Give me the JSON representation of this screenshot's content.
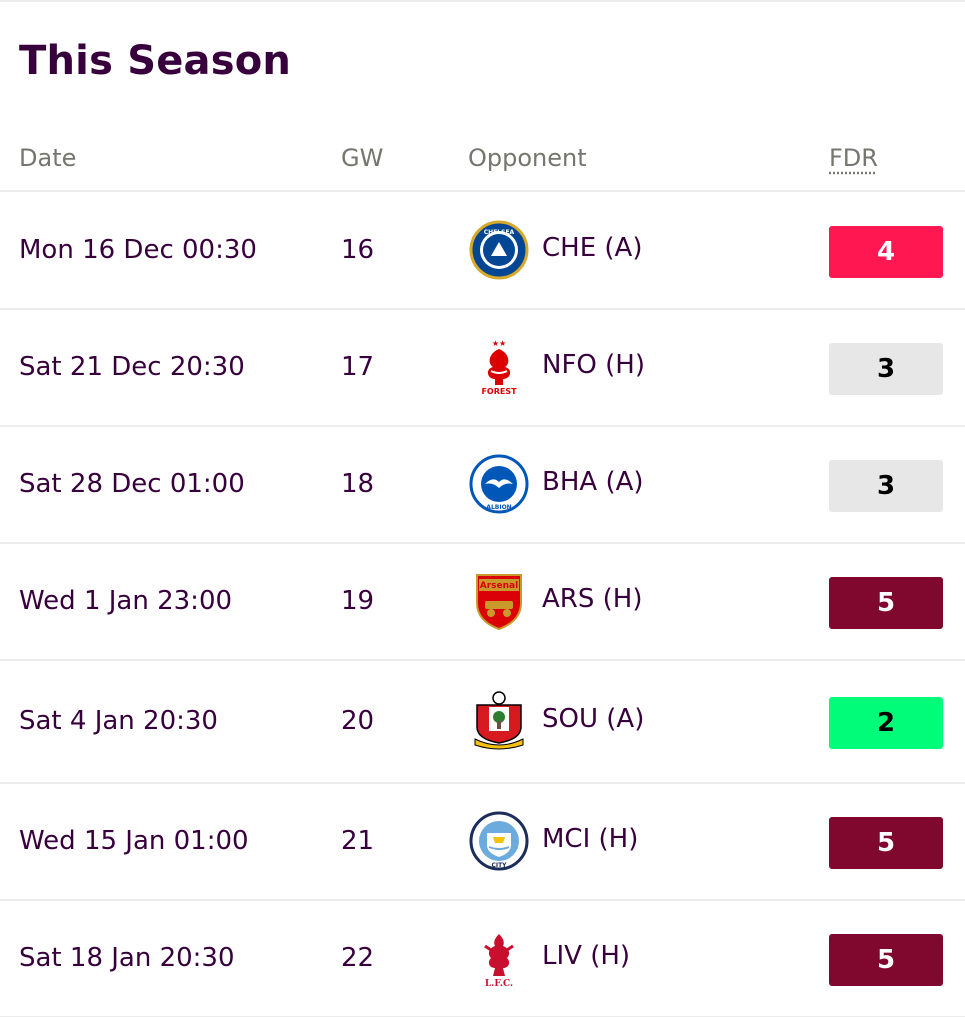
{
  "title": "This Season",
  "columns": {
    "date": "Date",
    "gw": "GW",
    "opponent": "Opponent",
    "fdr": "FDR"
  },
  "fixtures": [
    {
      "date": "Mon 16 Dec 00:30",
      "gw": "16",
      "opponent": "CHE (A)",
      "fdr": "4",
      "badge": "chelsea-badge-icon",
      "badge_text": "CHELSEA"
    },
    {
      "date": "Sat 21 Dec 20:30",
      "gw": "17",
      "opponent": "NFO (H)",
      "fdr": "3",
      "badge": "nottingham-forest-badge-icon",
      "badge_text": "FOREST"
    },
    {
      "date": "Sat 28 Dec 01:00",
      "gw": "18",
      "opponent": "BHA (A)",
      "fdr": "3",
      "badge": "brighton-badge-icon",
      "badge_text": "ALBION"
    },
    {
      "date": "Wed 1 Jan 23:00",
      "gw": "19",
      "opponent": "ARS (H)",
      "fdr": "5",
      "badge": "arsenal-badge-icon",
      "badge_text": "Arsenal"
    },
    {
      "date": "Sat 4 Jan 20:30",
      "gw": "20",
      "opponent": "SOU (A)",
      "fdr": "2",
      "badge": "southampton-badge-icon",
      "badge_text": "SOUTHAMPTON FC"
    },
    {
      "date": "Wed 15 Jan 01:00",
      "gw": "21",
      "opponent": "MCI (H)",
      "fdr": "5",
      "badge": "manchester-city-badge-icon",
      "badge_text": "CITY"
    },
    {
      "date": "Sat 18 Jan 20:30",
      "gw": "22",
      "opponent": "LIV (H)",
      "fdr": "5",
      "badge": "liverpool-badge-icon",
      "badge_text": "L.F.C."
    }
  ],
  "fdr_colors": {
    "2": {
      "bg": "#01fc7a",
      "fg": "#000000"
    },
    "3": {
      "bg": "#e7e7e7",
      "fg": "#000000"
    },
    "4": {
      "bg": "#ff1751",
      "fg": "#ffffff"
    },
    "5": {
      "bg": "#80072d",
      "fg": "#ffffff"
    }
  }
}
